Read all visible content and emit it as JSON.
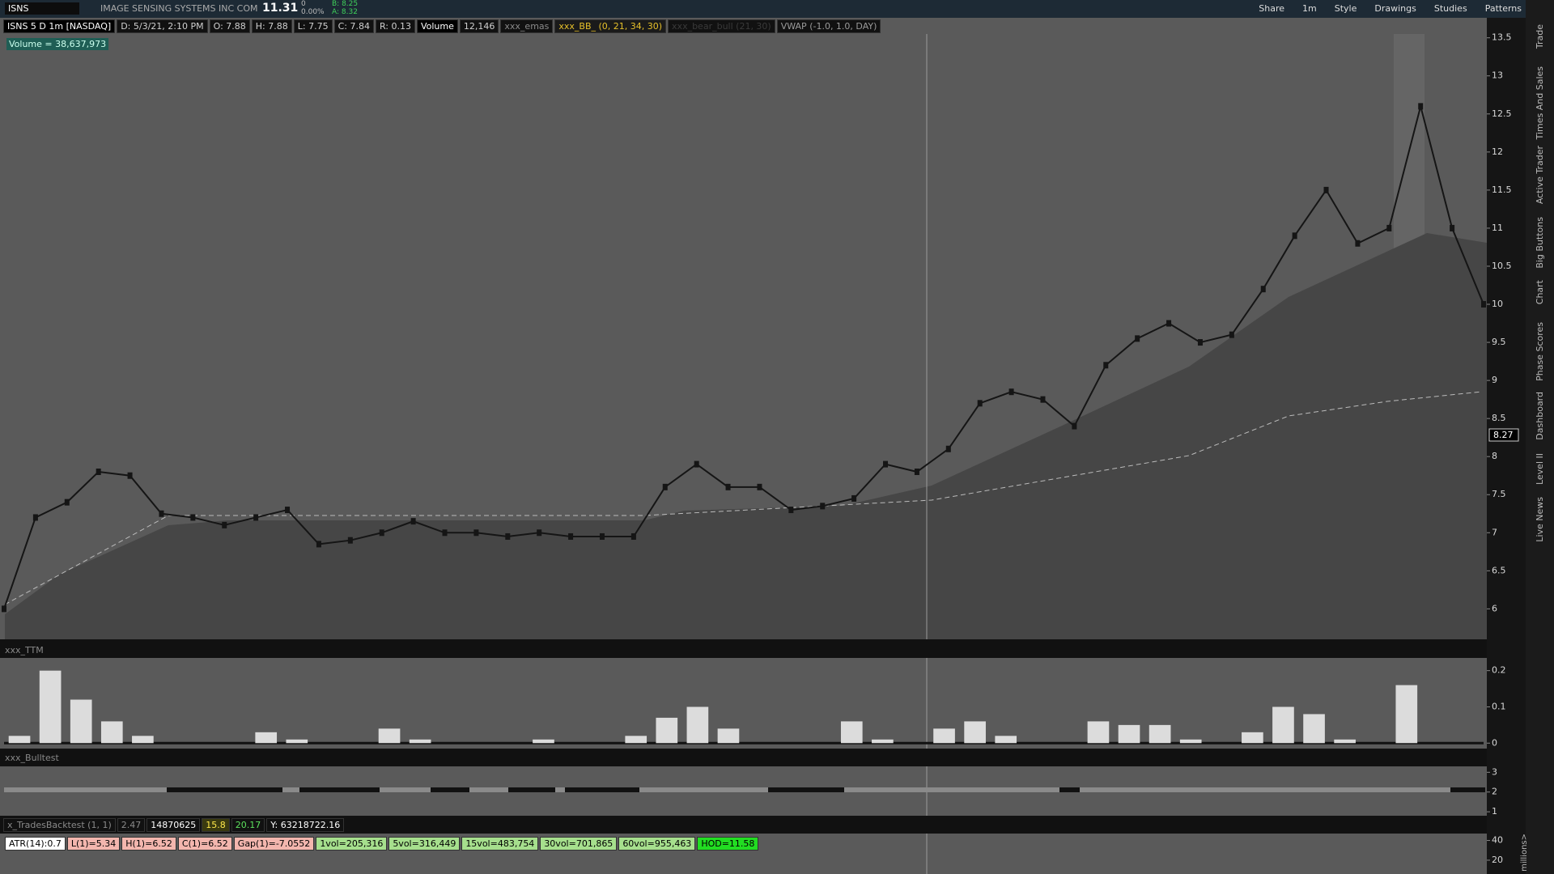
{
  "toolbar": {
    "symbol": "ISNS",
    "company": "IMAGE SENSING SYSTEMS INC COM",
    "last": "11.31",
    "change": "0",
    "change_pct": "0.00%",
    "bid": "B: 8.25",
    "ask": "A: 8.32",
    "buttons": [
      "Share",
      "1m",
      "Style",
      "Drawings",
      "Studies",
      "Patterns"
    ]
  },
  "header": {
    "items": [
      {
        "text": "ISNS 5 D 1m [NASDAQ]",
        "color": "#ffffff",
        "bg": "#000000"
      },
      {
        "text": "D: 5/3/21, 2:10 PM",
        "color": "#cfcfcf",
        "bg": "#111111"
      },
      {
        "text": "O: 7.88",
        "color": "#cfcfcf",
        "bg": "#111111"
      },
      {
        "text": "H: 7.88",
        "color": "#cfcfcf",
        "bg": "#111111"
      },
      {
        "text": "L: 7.75",
        "color": "#cfcfcf",
        "bg": "#111111"
      },
      {
        "text": "C: 7.84",
        "color": "#cfcfcf",
        "bg": "#111111"
      },
      {
        "text": "R: 0.13",
        "color": "#cfcfcf",
        "bg": "#111111"
      },
      {
        "text": "Volume",
        "color": "#ffffff",
        "bg": "#000000"
      },
      {
        "text": "12,146",
        "color": "#cfcfcf",
        "bg": "#111111"
      },
      {
        "text": "xxx_emas",
        "color": "#8a8a8a",
        "bg": "#111111"
      },
      {
        "text": "xxx_BB_ (0, 21, 34, 30)",
        "color": "#e6c02a",
        "bg": "#1a1a1a"
      },
      {
        "text": "xxx_bear_bull (21, 30)",
        "color": "#3a3a3a",
        "bg": "#111111"
      },
      {
        "text": "VWAP (-1.0, 1.0, DAY)",
        "color": "#9a9a9a",
        "bg": "#111111"
      }
    ]
  },
  "volume_label": "Volume = 38,637,973",
  "price_chart": {
    "type": "line",
    "color": "#151515",
    "ylim": [
      5.6,
      13.55
    ],
    "yticks": [
      13.5,
      13,
      12.5,
      12,
      11.5,
      11,
      10.5,
      10,
      9.5,
      9,
      8.5,
      8,
      7.5,
      7,
      6.5,
      6
    ],
    "last_price_label": "8.27",
    "values": [
      6.0,
      7.2,
      7.4,
      7.8,
      7.75,
      7.25,
      7.2,
      7.1,
      7.2,
      7.3,
      6.85,
      6.9,
      7.0,
      7.15,
      7.0,
      7.0,
      6.95,
      7.0,
      6.95,
      6.95,
      6.95,
      7.6,
      7.9,
      7.6,
      7.6,
      7.3,
      7.35,
      7.45,
      7.9,
      7.8,
      8.1,
      8.7,
      8.85,
      8.75,
      8.4,
      9.2,
      9.55,
      9.75,
      9.5,
      9.6,
      10.2,
      10.9,
      11.5,
      10.8,
      11.0,
      12.6,
      11.0,
      10.0
    ]
  },
  "ttm": {
    "type": "bar",
    "title": "xxx_TTM",
    "color": "#dcdcdc",
    "ylim": [
      -0.015,
      0.235
    ],
    "yticks": [
      0.2,
      0.1,
      0
    ],
    "values": [
      0.02,
      0.2,
      0.12,
      0.06,
      0.02,
      0,
      0,
      0,
      0.03,
      0.01,
      0,
      0,
      0.04,
      0.01,
      0,
      0,
      0,
      0.01,
      0,
      0,
      0.02,
      0.07,
      0.1,
      0.04,
      0,
      0,
      0,
      0.06,
      0.01,
      0,
      0.04,
      0.06,
      0.02,
      0,
      0,
      0.06,
      0.05,
      0.05,
      0.01,
      0,
      0.03,
      0.1,
      0.08,
      0.01,
      0,
      0.16,
      0,
      0
    ]
  },
  "bulltest": {
    "title": "xxx_Bulltest",
    "ylim": [
      0.8,
      3.3
    ],
    "yticks": [
      3,
      2,
      1
    ]
  },
  "backtest": {
    "items": [
      {
        "text": "x_TradesBacktest (1, 1)",
        "color": "#8a8a8a",
        "bg": "#111111"
      },
      {
        "text": "2.47",
        "color": "#8a8a8a",
        "bg": "#111111"
      },
      {
        "text": "14870625",
        "color": "#ffffff",
        "bg": "#111111"
      },
      {
        "text": "15.8",
        "color": "#ffe94a",
        "bg": "#3a3a10"
      },
      {
        "text": "20.17",
        "color": "#5de05d",
        "bg": "#111111"
      },
      {
        "text": "Y: 63218722.16",
        "color": "#ffffff",
        "bg": "#111111"
      }
    ]
  },
  "labels": [
    {
      "text": "ATR(14):0.7",
      "color": "#000000",
      "bg": "#ffffff"
    },
    {
      "text": "L(1)=5.34",
      "color": "#000000",
      "bg": "#f3b6ae"
    },
    {
      "text": "H(1)=6.52",
      "color": "#000000",
      "bg": "#f3b6ae"
    },
    {
      "text": "C(1)=6.52",
      "color": "#000000",
      "bg": "#f3b6ae"
    },
    {
      "text": "Gap(1)=-7.0552",
      "color": "#000000",
      "bg": "#f3b6ae"
    },
    {
      "text": "1vol=205,316",
      "color": "#000000",
      "bg": "#a6df8d"
    },
    {
      "text": "5vol=316,449",
      "color": "#000000",
      "bg": "#a6df8d"
    },
    {
      "text": "15vol=483,754",
      "color": "#000000",
      "bg": "#a6df8d"
    },
    {
      "text": "30vol=701,865",
      "color": "#000000",
      "bg": "#a6df8d"
    },
    {
      "text": "60vol=955,463",
      "color": "#000000",
      "bg": "#a6df8d"
    },
    {
      "text": "HOD=11.58",
      "color": "#000000",
      "bg": "#22dd22"
    }
  ],
  "volume_axis": {
    "ylim": [
      6,
      47
    ],
    "yticks": [
      40,
      20
    ],
    "unit": "millions>"
  },
  "sidebar": [
    "Trade",
    "Times And Sales",
    "Active Trader",
    "Big Buttons",
    "Chart",
    "Phase Scores",
    "Dashboard",
    "Level II",
    "Live News"
  ]
}
